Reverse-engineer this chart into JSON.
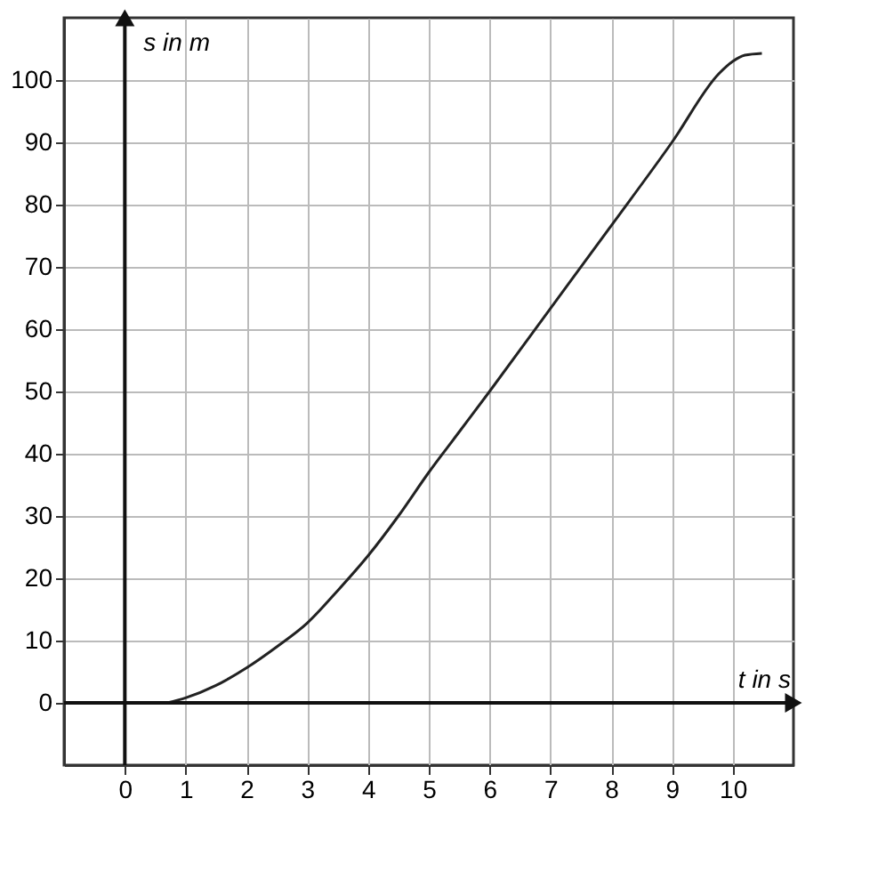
{
  "chart_data": {
    "type": "line",
    "xlabel": "t in s",
    "ylabel": "s in m",
    "x": [
      0.7,
      1,
      1.5,
      2,
      2.5,
      3,
      3.5,
      4,
      4.5,
      5,
      5.5,
      6,
      7,
      8,
      9,
      9.77,
      10,
      10.2,
      10.48
    ],
    "values": [
      0,
      0.8,
      2.8,
      5.6,
      9,
      12.8,
      18,
      23.6,
      30,
      37,
      43.5,
      50,
      63.3,
      76.6,
      90,
      101,
      103,
      104,
      104.3
    ],
    "color": "#222222",
    "xlim": [
      -1,
      11
    ],
    "ylim": [
      -10,
      110
    ],
    "xticks": [
      0,
      1,
      2,
      3,
      4,
      5,
      6,
      7,
      8,
      9,
      10
    ],
    "yticks": [
      0,
      10,
      20,
      30,
      40,
      50,
      60,
      70,
      80,
      90,
      100
    ],
    "grid": true
  }
}
